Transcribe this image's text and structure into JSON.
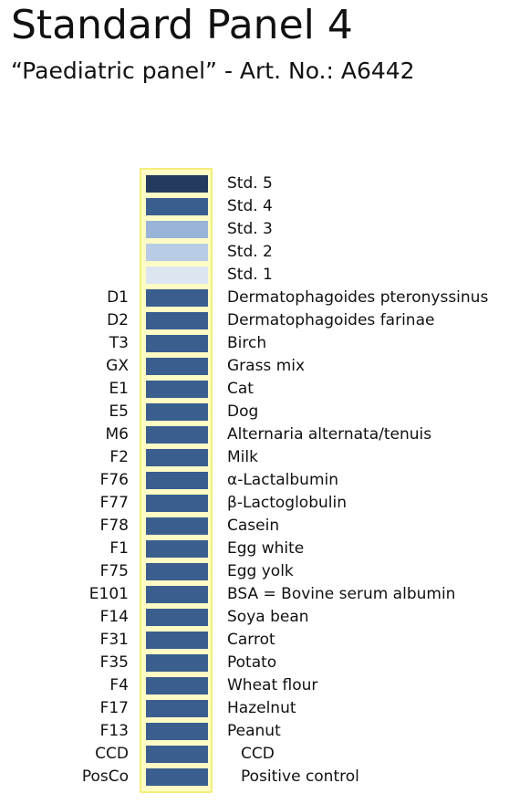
{
  "header": {
    "title": "Standard Panel 4",
    "subtitle": "“Paediatric panel” - Art. No.: A6442"
  },
  "colors": {
    "strip_background": "#fefcc4",
    "strip_border": "#f4ef7a",
    "std5": "#243a5e",
    "std4": "#3a5f8f",
    "std3": "#98b4d8",
    "std2": "#b9cce6",
    "std1": "#dce6f1",
    "allergen_field": "#3a5f8f"
  },
  "panel": {
    "rows": [
      {
        "code": "",
        "name": "Std. 5",
        "color": "#243a5e"
      },
      {
        "code": "",
        "name": "Std. 4",
        "color": "#3a5f8f"
      },
      {
        "code": "",
        "name": "Std. 3",
        "color": "#98b4d8"
      },
      {
        "code": "",
        "name": "Std. 2",
        "color": "#b9cce6"
      },
      {
        "code": "",
        "name": "Std. 1",
        "color": "#dce6f1"
      },
      {
        "code": "D1",
        "name": "Dermatophagoides pteronyssinus",
        "color": "#3a5f8f"
      },
      {
        "code": "D2",
        "name": "Dermatophagoides farinae",
        "color": "#3a5f8f"
      },
      {
        "code": "T3",
        "name": "Birch",
        "color": "#3a5f8f"
      },
      {
        "code": "GX",
        "name": "Grass mix",
        "color": "#3a5f8f"
      },
      {
        "code": "E1",
        "name": "Cat",
        "color": "#3a5f8f"
      },
      {
        "code": "E5",
        "name": "Dog",
        "color": "#3a5f8f"
      },
      {
        "code": "M6",
        "name": "Alternaria alternata/tenuis",
        "color": "#3a5f8f"
      },
      {
        "code": "F2",
        "name": "Milk",
        "color": "#3a5f8f"
      },
      {
        "code": "F76",
        "name": "α-Lactalbumin",
        "color": "#3a5f8f"
      },
      {
        "code": "F77",
        "name": "β-Lactoglobulin",
        "color": "#3a5f8f"
      },
      {
        "code": "F78",
        "name": "Casein",
        "color": "#3a5f8f"
      },
      {
        "code": "F1",
        "name": "Egg white",
        "color": "#3a5f8f"
      },
      {
        "code": "F75",
        "name": "Egg yolk",
        "color": "#3a5f8f"
      },
      {
        "code": "E101",
        "name": "BSA = Bovine serum albumin",
        "color": "#3a5f8f"
      },
      {
        "code": "F14",
        "name": "Soya bean",
        "color": "#3a5f8f"
      },
      {
        "code": "F31",
        "name": "Carrot",
        "color": "#3a5f8f"
      },
      {
        "code": "F35",
        "name": "Potato",
        "color": "#3a5f8f"
      },
      {
        "code": "F4",
        "name": "Wheat flour",
        "color": "#3a5f8f"
      },
      {
        "code": "F17",
        "name": "Hazelnut",
        "color": "#3a5f8f"
      },
      {
        "code": "F13",
        "name": "Peanut",
        "color": "#3a5f8f"
      },
      {
        "code": "CCD",
        "name": "CCD",
        "color": "#3a5f8f",
        "indent": true
      },
      {
        "code": "PosCo",
        "name": "Positive control",
        "color": "#3a5f8f",
        "indent": true
      }
    ]
  }
}
